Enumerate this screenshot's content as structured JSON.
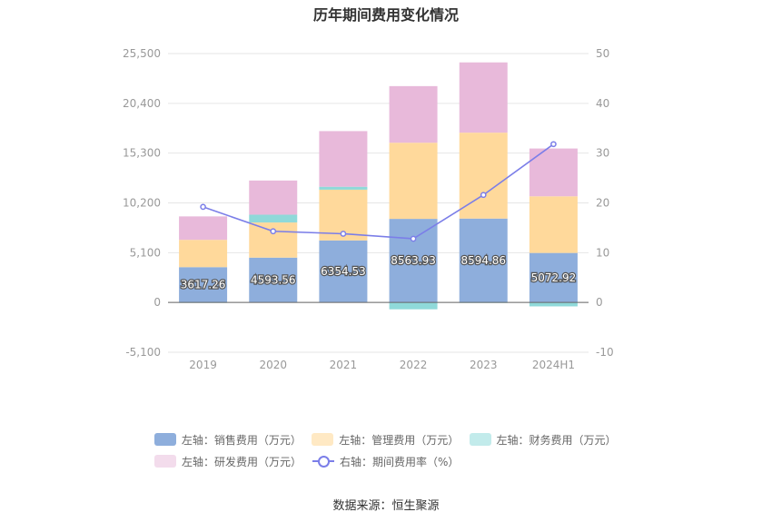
{
  "chart_data": {
    "type": "bar",
    "title": "历年期间费用变化情况",
    "categories": [
      "2019",
      "2020",
      "2021",
      "2022",
      "2023",
      "2024H1"
    ],
    "stacked": true,
    "left_axis": {
      "ylim": [
        -5100,
        25500
      ],
      "ticks": [
        "-5,100",
        "0",
        "5,100",
        "10,200",
        "15,300",
        "20,400",
        "25,500"
      ],
      "tick_values": [
        -5100,
        0,
        5100,
        10200,
        15300,
        20400,
        25500
      ]
    },
    "right_axis": {
      "ylim": [
        -10,
        50
      ],
      "ticks": [
        "-10",
        "0",
        "10",
        "20",
        "30",
        "40",
        "50"
      ],
      "tick_values": [
        -10,
        0,
        10,
        20,
        30,
        40,
        50
      ]
    },
    "grid": true,
    "legend_position": "bottom",
    "series": [
      {
        "name": "左轴：销售费用（万元）",
        "axis": "left",
        "type": "bar",
        "color": "#8eaedc",
        "values": [
          3617.26,
          4593.56,
          6354.53,
          8563.93,
          8594.86,
          5072.92
        ],
        "labels": [
          "3617.26",
          "4593.56",
          "6354.53",
          "8563.93",
          "8594.86",
          "5072.92"
        ]
      },
      {
        "name": "左轴：管理费用（万元）",
        "axis": "left",
        "type": "bar",
        "color": "#ffd99b",
        "values": [
          2800,
          3600,
          5200,
          7800,
          8800,
          5800
        ]
      },
      {
        "name": "左轴：财务费用（万元）",
        "axis": "left",
        "type": "bar",
        "color": "#8fd9d9",
        "values": [
          -30,
          800,
          300,
          -700,
          -50,
          -400
        ]
      },
      {
        "name": "左轴：研发费用（万元）",
        "axis": "left",
        "type": "bar",
        "color": "#e8b9da",
        "values": [
          2400,
          3500,
          5700,
          5800,
          7200,
          4900
        ]
      },
      {
        "name": "右轴：期间费用率（%）",
        "axis": "right",
        "type": "line",
        "color": "#7b7ee8",
        "values": [
          19.2,
          14.3,
          13.8,
          12.8,
          21.6,
          31.8
        ]
      }
    ]
  },
  "source_text": "数据来源：恒生聚源"
}
